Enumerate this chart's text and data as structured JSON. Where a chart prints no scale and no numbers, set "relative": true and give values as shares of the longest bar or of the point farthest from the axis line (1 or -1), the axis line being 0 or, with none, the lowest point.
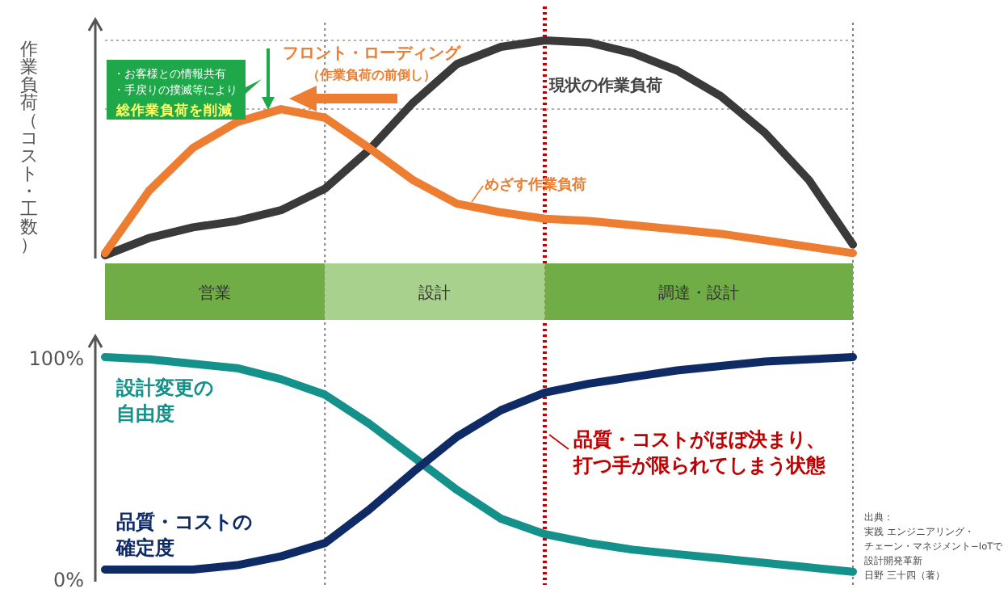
{
  "chart_data": [
    {
      "type": "line",
      "relative": true,
      "ylabel": "作業負荷（コスト・工数）",
      "categories": [
        null,
        null,
        null,
        null,
        null,
        null,
        null,
        null,
        null,
        null,
        null,
        null,
        null,
        null,
        null,
        null,
        null,
        null
      ],
      "tick_labels": false,
      "series": [
        {
          "name": "現状の作業負荷",
          "color": "#3a3a3a",
          "values": [
            0,
            0.08,
            0.13,
            0.16,
            0.21,
            0.31,
            0.49,
            0.71,
            0.89,
            0.97,
            1,
            0.99,
            0.94,
            0.86,
            0.74,
            0.57,
            0.35,
            0.05
          ]
        },
        {
          "name": "めざす作業負荷",
          "color": "#ed7d31",
          "values": [
            0.01,
            0.3,
            0.5,
            0.62,
            0.68,
            0.64,
            0.5,
            0.35,
            0.24,
            0.2,
            0.17,
            0.16,
            0.14,
            0.12,
            0.1,
            0.07,
            0.04,
            0.01
          ]
        }
      ],
      "ref_lines": [
        {
          "axis": "y",
          "value": 1,
          "color": "#b0b0b0",
          "line_style": "dotted"
        },
        {
          "axis": "y",
          "value": 0.68,
          "color": "#b0b0b0",
          "line_style": "dotted"
        }
      ],
      "annotations": [
        "フロント・ローディング",
        "（作業負荷の前倒し）",
        "・お客様との情報共有",
        "・手戻りの撲滅等により",
        "総作業負荷を削減"
      ]
    },
    {
      "type": "other",
      "categories": [
        "営業",
        "設計",
        "調達・設計"
      ],
      "colors": [
        "#70ad47",
        "#a9d18e",
        "#70ad47"
      ]
    },
    {
      "type": "line",
      "categories": [
        null,
        null,
        null,
        null,
        null,
        null,
        null,
        null,
        null,
        null,
        null,
        null,
        null,
        null,
        null,
        null,
        null,
        null
      ],
      "ylim": [
        0,
        100
      ],
      "yticks": [
        {
          "value": 0,
          "label": "0%"
        },
        {
          "value": 100,
          "label": "100%"
        }
      ],
      "tick_labels": "y",
      "series": [
        {
          "name": "設計変更の自由度",
          "color": "#14918a",
          "values": [
            100,
            99,
            97,
            95,
            90,
            83,
            70,
            55,
            40,
            27,
            20,
            16,
            13,
            11,
            9,
            7,
            5,
            3
          ]
        },
        {
          "name": "品質・コストの確定度",
          "color": "#0f2b66",
          "values": [
            4,
            4,
            4,
            6,
            10,
            16,
            31,
            48,
            64,
            76,
            84,
            88,
            91,
            94,
            96,
            98,
            99,
            100
          ]
        }
      ],
      "annotations": [
        "品質・コストがほぼ決まり、",
        "打つ手が限られてしまう状態",
        "出典：",
        "実践 エンジニアリング・",
        "チェーン・マネジメント−IoTで",
        "設計開発革新",
        "日野 三十四（著）"
      ]
    }
  ]
}
